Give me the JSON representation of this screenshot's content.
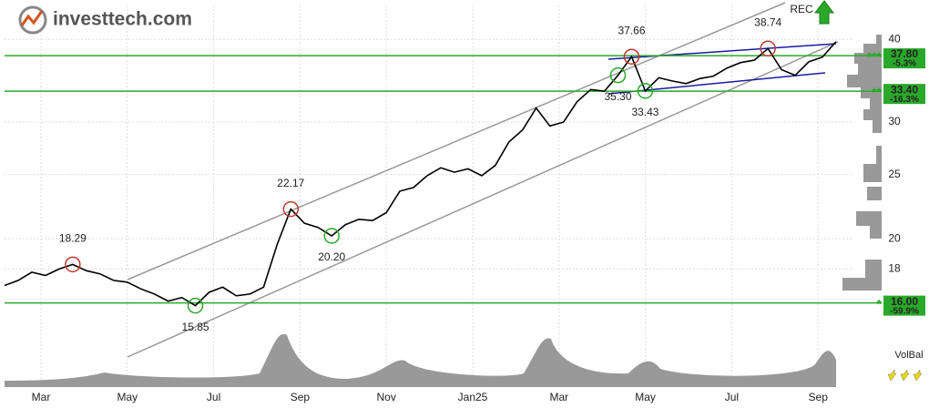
{
  "brand": "investtech.com",
  "chart_data": {
    "type": "line",
    "color": "#000000",
    "log_scale": true,
    "grid": true,
    "values": [
      17.0,
      17.3,
      17.8,
      17.6,
      18.0,
      18.29,
      17.9,
      17.7,
      17.3,
      17.2,
      16.8,
      16.5,
      16.1,
      16.3,
      15.85,
      16.6,
      16.9,
      16.4,
      16.5,
      16.9,
      19.6,
      22.17,
      21.1,
      20.8,
      20.2,
      21.0,
      21.4,
      21.3,
      21.9,
      23.6,
      23.9,
      24.9,
      25.6,
      25.2,
      25.5,
      24.9,
      25.8,
      28.0,
      29.2,
      31.5,
      29.6,
      30.0,
      32.2,
      33.6,
      33.4,
      35.3,
      37.66,
      33.43,
      35.0,
      34.6,
      34.3,
      34.9,
      35.2,
      36.2,
      36.9,
      37.2,
      38.74,
      36.0,
      35.3,
      37.0,
      37.6,
      39.7
    ],
    "x_labels": [
      "Mar",
      "May",
      "Jul",
      "Sep",
      "Nov",
      "Jan25",
      "Mar",
      "May",
      "Jul",
      "Sep"
    ],
    "ylim": [
      15,
      45
    ],
    "yticks": [
      18,
      20,
      25,
      30,
      40
    ],
    "highs": [
      18.29,
      22.17,
      37.66,
      38.74
    ],
    "lows": [
      15.85,
      {
        "value": 20.2,
        "label": "20.20"
      },
      33.43,
      {
        "value": 35.3,
        "label": "35.30"
      }
    ],
    "levels": [
      {
        "value": 37.8,
        "label": "37.80",
        "change": "-5.3%",
        "stars": "***"
      },
      {
        "value": 33.4,
        "label": "33.40",
        "change": "-16.3%",
        "stars": "**"
      },
      {
        "value": 16,
        "label": "16.00",
        "change": "-59.9%",
        "stars": "*"
      }
    ],
    "signal": "REC",
    "volume_label": "VolBal"
  }
}
